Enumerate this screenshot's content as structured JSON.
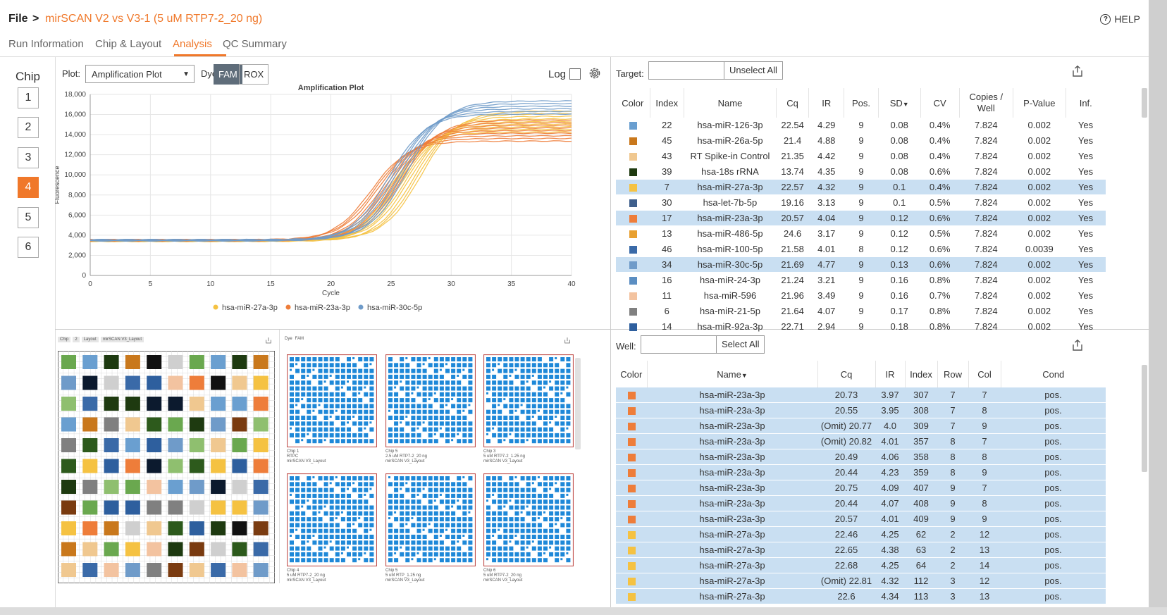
{
  "header": {
    "file_label": "File",
    "separator": ">",
    "run_title": "mirSCAN V2 vs V3-1 (5 uM RTP7-2_20 ng)",
    "help_label": "HELP"
  },
  "tabs": [
    {
      "label": "Run Information",
      "active": false
    },
    {
      "label": "Chip & Layout",
      "active": false
    },
    {
      "label": "Analysis",
      "active": true
    },
    {
      "label": "QC Summary",
      "active": false
    }
  ],
  "chip_selector": {
    "title": "Chip",
    "chips": [
      "1",
      "2",
      "3",
      "4",
      "5",
      "6"
    ],
    "active": "4"
  },
  "plot_controls": {
    "plot_label": "Plot:",
    "plot_value": "Amplification Plot",
    "dye_label": "Dye:",
    "dyes": [
      "FAM",
      "ROX"
    ],
    "active_dye": "FAM",
    "log_label": "Log"
  },
  "chart_data": {
    "type": "line",
    "title": "Amplification Plot",
    "xlabel": "Cycle",
    "ylabel": "Fluorescence",
    "xlim": [
      0,
      40
    ],
    "ylim": [
      0,
      18000
    ],
    "x_ticks": [
      "0",
      "5",
      "10",
      "15",
      "20",
      "25",
      "30",
      "35",
      "40"
    ],
    "y_ticks": [
      "0",
      "2,000",
      "4,000",
      "6,000",
      "8,000",
      "10,000",
      "12,000",
      "14,000",
      "16,000",
      "18,000"
    ],
    "grid": true,
    "legend_position": "bottom",
    "series": [
      {
        "name": "hsa-miR-27a-3p",
        "color": "#f5c242",
        "baseline": 3450,
        "plateau": 15300,
        "midpoint": 26.2,
        "replicates": 9
      },
      {
        "name": "hsa-miR-23a-3p",
        "color": "#ee7d3a",
        "baseline": 3500,
        "plateau": 14400,
        "midpoint": 24.6,
        "replicates": 9
      },
      {
        "name": "hsa-miR-30c-5p",
        "color": "#6f9bc9",
        "baseline": 3500,
        "plateau": 16700,
        "midpoint": 25.6,
        "replicates": 6
      }
    ]
  },
  "target_panel": {
    "target_label": "Target:",
    "target_value": "",
    "unselect_label": "Unselect All",
    "columns": [
      "Color",
      "Index",
      "Name",
      "Cq",
      "IR",
      "Pos.",
      "SD",
      "CV",
      "Copies / Well",
      "P-Value",
      "Inf."
    ],
    "sort_column": "SD",
    "rows": [
      {
        "color": "#6a9fd0",
        "index": "22",
        "name": "hsa-miR-126-3p",
        "cq": "22.54",
        "ir": "4.29",
        "pos": "9",
        "sd": "0.08",
        "cv": "0.4%",
        "copies": "7.824",
        "p": "0.002",
        "inf": "Yes",
        "selected": false
      },
      {
        "color": "#c9781c",
        "index": "45",
        "name": "hsa-miR-26a-5p",
        "cq": "21.4",
        "ir": "4.88",
        "pos": "9",
        "sd": "0.08",
        "cv": "0.4%",
        "copies": "7.824",
        "p": "0.002",
        "inf": "Yes",
        "selected": false
      },
      {
        "color": "#f0c890",
        "index": "43",
        "name": "RT Spike-in Control",
        "cq": "21.35",
        "ir": "4.42",
        "pos": "9",
        "sd": "0.08",
        "cv": "0.4%",
        "copies": "7.824",
        "p": "0.002",
        "inf": "Yes",
        "selected": false
      },
      {
        "color": "#1e3a10",
        "index": "39",
        "name": "hsa-18s rRNA",
        "cq": "13.74",
        "ir": "4.35",
        "pos": "9",
        "sd": "0.08",
        "cv": "0.6%",
        "copies": "7.824",
        "p": "0.002",
        "inf": "Yes",
        "selected": false
      },
      {
        "color": "#f5c242",
        "index": "7",
        "name": "hsa-miR-27a-3p",
        "cq": "22.57",
        "ir": "4.32",
        "pos": "9",
        "sd": "0.1",
        "cv": "0.4%",
        "copies": "7.824",
        "p": "0.002",
        "inf": "Yes",
        "selected": true
      },
      {
        "color": "#3f5f8c",
        "index": "30",
        "name": "hsa-let-7b-5p",
        "cq": "19.16",
        "ir": "3.13",
        "pos": "9",
        "sd": "0.1",
        "cv": "0.5%",
        "copies": "7.824",
        "p": "0.002",
        "inf": "Yes",
        "selected": false
      },
      {
        "color": "#ee7d3a",
        "index": "17",
        "name": "hsa-miR-23a-3p",
        "cq": "20.57",
        "ir": "4.04",
        "pos": "9",
        "sd": "0.12",
        "cv": "0.6%",
        "copies": "7.824",
        "p": "0.002",
        "inf": "Yes",
        "selected": true
      },
      {
        "color": "#e8a030",
        "index": "13",
        "name": "hsa-miR-486-5p",
        "cq": "24.6",
        "ir": "3.17",
        "pos": "9",
        "sd": "0.12",
        "cv": "0.5%",
        "copies": "7.824",
        "p": "0.002",
        "inf": "Yes",
        "selected": false
      },
      {
        "color": "#3a6aa8",
        "index": "46",
        "name": "hsa-miR-100-5p",
        "cq": "21.58",
        "ir": "4.01",
        "pos": "8",
        "sd": "0.12",
        "cv": "0.6%",
        "copies": "7.824",
        "p": "0.0039",
        "inf": "Yes",
        "selected": false
      },
      {
        "color": "#6f9bc9",
        "index": "34",
        "name": "hsa-miR-30c-5p",
        "cq": "21.69",
        "ir": "4.77",
        "pos": "9",
        "sd": "0.13",
        "cv": "0.6%",
        "copies": "7.824",
        "p": "0.002",
        "inf": "Yes",
        "selected": true
      },
      {
        "color": "#5b8ec2",
        "index": "16",
        "name": "hsa-miR-24-3p",
        "cq": "21.24",
        "ir": "3.21",
        "pos": "9",
        "sd": "0.16",
        "cv": "0.8%",
        "copies": "7.824",
        "p": "0.002",
        "inf": "Yes",
        "selected": false
      },
      {
        "color": "#f3c3a0",
        "index": "11",
        "name": "hsa-miR-596",
        "cq": "21.96",
        "ir": "3.49",
        "pos": "9",
        "sd": "0.16",
        "cv": "0.7%",
        "copies": "7.824",
        "p": "0.002",
        "inf": "Yes",
        "selected": false
      },
      {
        "color": "#808080",
        "index": "6",
        "name": "hsa-miR-21-5p",
        "cq": "21.64",
        "ir": "4.07",
        "pos": "9",
        "sd": "0.17",
        "cv": "0.8%",
        "copies": "7.824",
        "p": "0.002",
        "inf": "Yes",
        "selected": false
      },
      {
        "color": "#2e5f9e",
        "index": "14",
        "name": "hsa-miR-92a-3p",
        "cq": "22.71",
        "ir": "2.94",
        "pos": "9",
        "sd": "0.18",
        "cv": "0.8%",
        "copies": "7.824",
        "p": "0.002",
        "inf": "Yes",
        "selected": false
      }
    ]
  },
  "layout_panel": {
    "crumbs": [
      "Chip",
      "2",
      "Layout",
      "mirSCAN V3_Layout"
    ],
    "dye_label": "Dye",
    "dye_value": "FAM",
    "thumbnails": [
      [
        "Chip 1",
        "RTPC",
        "mirSCAN V3_Layout"
      ],
      [
        "Chip 5",
        "2.5 uM RTP7-2_20 ng",
        "mirSCAN V3_Layout"
      ],
      [
        "Chip 3",
        "5 uM RTP7-2_1.25 ng",
        "mirSCAN V3_Layout"
      ],
      [
        "Chip 4",
        "5 uM RTP7-2_20 ng",
        "mirSCAN V3_Layout"
      ],
      [
        "Chip 5",
        "5 uM RTP_1.25 ng",
        "mirSCAN V3_Layout"
      ],
      [
        "Chip 6",
        "5 uM RTP7-2_20 ng",
        "mirSCAN V3_Layout"
      ]
    ],
    "palette": [
      "#6aa84f",
      "#3a6aa8",
      "#f5c242",
      "#6a9fd0",
      "#f3c3a0",
      "#2e5f9e",
      "#1e3a10",
      "#6f9bc9",
      "#ee7d3a",
      "#c9781c",
      "#808080",
      "#0c1a2e",
      "#111111",
      "#7a3b10",
      "#8fbf6f",
      "#cfcfcf",
      "#f0c890",
      "#2d5a1c"
    ]
  },
  "well_panel": {
    "well_label": "Well:",
    "well_value": "",
    "select_all_label": "Select All",
    "columns": [
      "Color",
      "Name",
      "Cq",
      "IR",
      "Index",
      "Row",
      "Col",
      "Cond"
    ],
    "sort_column": "Name",
    "rows": [
      {
        "color": "#ee7d3a",
        "name": "hsa-miR-23a-3p",
        "cq": "20.73",
        "ir": "3.97",
        "index": "307",
        "row": "7",
        "col": "7",
        "cond": "pos."
      },
      {
        "color": "#ee7d3a",
        "name": "hsa-miR-23a-3p",
        "cq": "20.55",
        "ir": "3.95",
        "index": "308",
        "row": "7",
        "col": "8",
        "cond": "pos."
      },
      {
        "color": "#ee7d3a",
        "name": "hsa-miR-23a-3p",
        "cq": "(Omit) 20.77",
        "ir": "4.0",
        "index": "309",
        "row": "7",
        "col": "9",
        "cond": "pos."
      },
      {
        "color": "#ee7d3a",
        "name": "hsa-miR-23a-3p",
        "cq": "(Omit) 20.82",
        "ir": "4.01",
        "index": "357",
        "row": "8",
        "col": "7",
        "cond": "pos."
      },
      {
        "color": "#ee7d3a",
        "name": "hsa-miR-23a-3p",
        "cq": "20.49",
        "ir": "4.06",
        "index": "358",
        "row": "8",
        "col": "8",
        "cond": "pos."
      },
      {
        "color": "#ee7d3a",
        "name": "hsa-miR-23a-3p",
        "cq": "20.44",
        "ir": "4.23",
        "index": "359",
        "row": "8",
        "col": "9",
        "cond": "pos."
      },
      {
        "color": "#ee7d3a",
        "name": "hsa-miR-23a-3p",
        "cq": "20.75",
        "ir": "4.09",
        "index": "407",
        "row": "9",
        "col": "7",
        "cond": "pos."
      },
      {
        "color": "#ee7d3a",
        "name": "hsa-miR-23a-3p",
        "cq": "20.44",
        "ir": "4.07",
        "index": "408",
        "row": "9",
        "col": "8",
        "cond": "pos."
      },
      {
        "color": "#ee7d3a",
        "name": "hsa-miR-23a-3p",
        "cq": "20.57",
        "ir": "4.01",
        "index": "409",
        "row": "9",
        "col": "9",
        "cond": "pos."
      },
      {
        "color": "#f5c242",
        "name": "hsa-miR-27a-3p",
        "cq": "22.46",
        "ir": "4.25",
        "index": "62",
        "row": "2",
        "col": "12",
        "cond": "pos."
      },
      {
        "color": "#f5c242",
        "name": "hsa-miR-27a-3p",
        "cq": "22.65",
        "ir": "4.38",
        "index": "63",
        "row": "2",
        "col": "13",
        "cond": "pos."
      },
      {
        "color": "#f5c242",
        "name": "hsa-miR-27a-3p",
        "cq": "22.68",
        "ir": "4.25",
        "index": "64",
        "row": "2",
        "col": "14",
        "cond": "pos."
      },
      {
        "color": "#f5c242",
        "name": "hsa-miR-27a-3p",
        "cq": "(Omit) 22.81",
        "ir": "4.32",
        "index": "112",
        "row": "3",
        "col": "12",
        "cond": "pos."
      },
      {
        "color": "#f5c242",
        "name": "hsa-miR-27a-3p",
        "cq": "22.6",
        "ir": "4.34",
        "index": "113",
        "row": "3",
        "col": "13",
        "cond": "pos."
      }
    ]
  }
}
